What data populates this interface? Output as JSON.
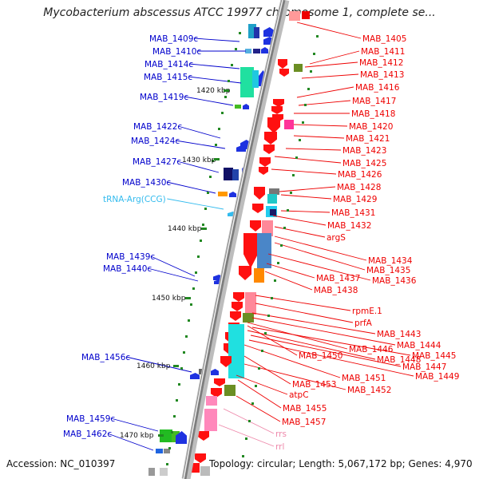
{
  "title": "Mycobacterium abscessus ATCC 19977 chromosome 1, complete se...",
  "accession": "Accession: NC_010397",
  "summary": "Topology: circular; Length: 5,067,172 bp; Genes: 4,970",
  "colors": {
    "minus_strand_label": "#0000cc",
    "plus_strand_label": "#ee0000",
    "trna_label": "#33bbee",
    "rrna_label": "#ee88aa",
    "backbone": "#999999",
    "tick": "#228822"
  },
  "ticks": [
    "1420 kbp",
    "1430 kbp",
    "1440 kbp",
    "1450 kbp",
    "1460 kbp",
    "1470 kbp"
  ],
  "left_labels": [
    "MAB_1409c",
    "MAB_1410c",
    "MAB_1414c",
    "MAB_1415c",
    "MAB_1419c",
    "MAB_1422c",
    "MAB_1424c",
    "MAB_1427c",
    "MAB_1430c",
    "tRNA-Arg(CCG)",
    "MAB_1439c",
    "MAB_1440c",
    "MAB_1456c",
    "MAB_1459c",
    "MAB_1462c"
  ],
  "right_labels": [
    "MAB_1405",
    "MAB_1411",
    "MAB_1412",
    "MAB_1413",
    "MAB_1416",
    "MAB_1417",
    "MAB_1418",
    "MAB_1420",
    "MAB_1421",
    "MAB_1423",
    "MAB_1425",
    "MAB_1426",
    "MAB_1428",
    "MAB_1429",
    "MAB_1431",
    "MAB_1432",
    "argS",
    "MAB_1434",
    "MAB_1435",
    "MAB_1437",
    "MAB_1436",
    "MAB_1438",
    "rpmE.1",
    "prfA",
    "MAB_1443",
    "MAB_1444",
    "MAB_1446",
    "MAB_1450",
    "MAB_1445",
    "MAB_1448",
    "MAB_1447",
    "MAB_1449",
    "MAB_1451",
    "MAB_1453",
    "MAB_1452",
    "atpC",
    "MAB_1455",
    "MAB_1457",
    "rrs",
    "rrl"
  ]
}
